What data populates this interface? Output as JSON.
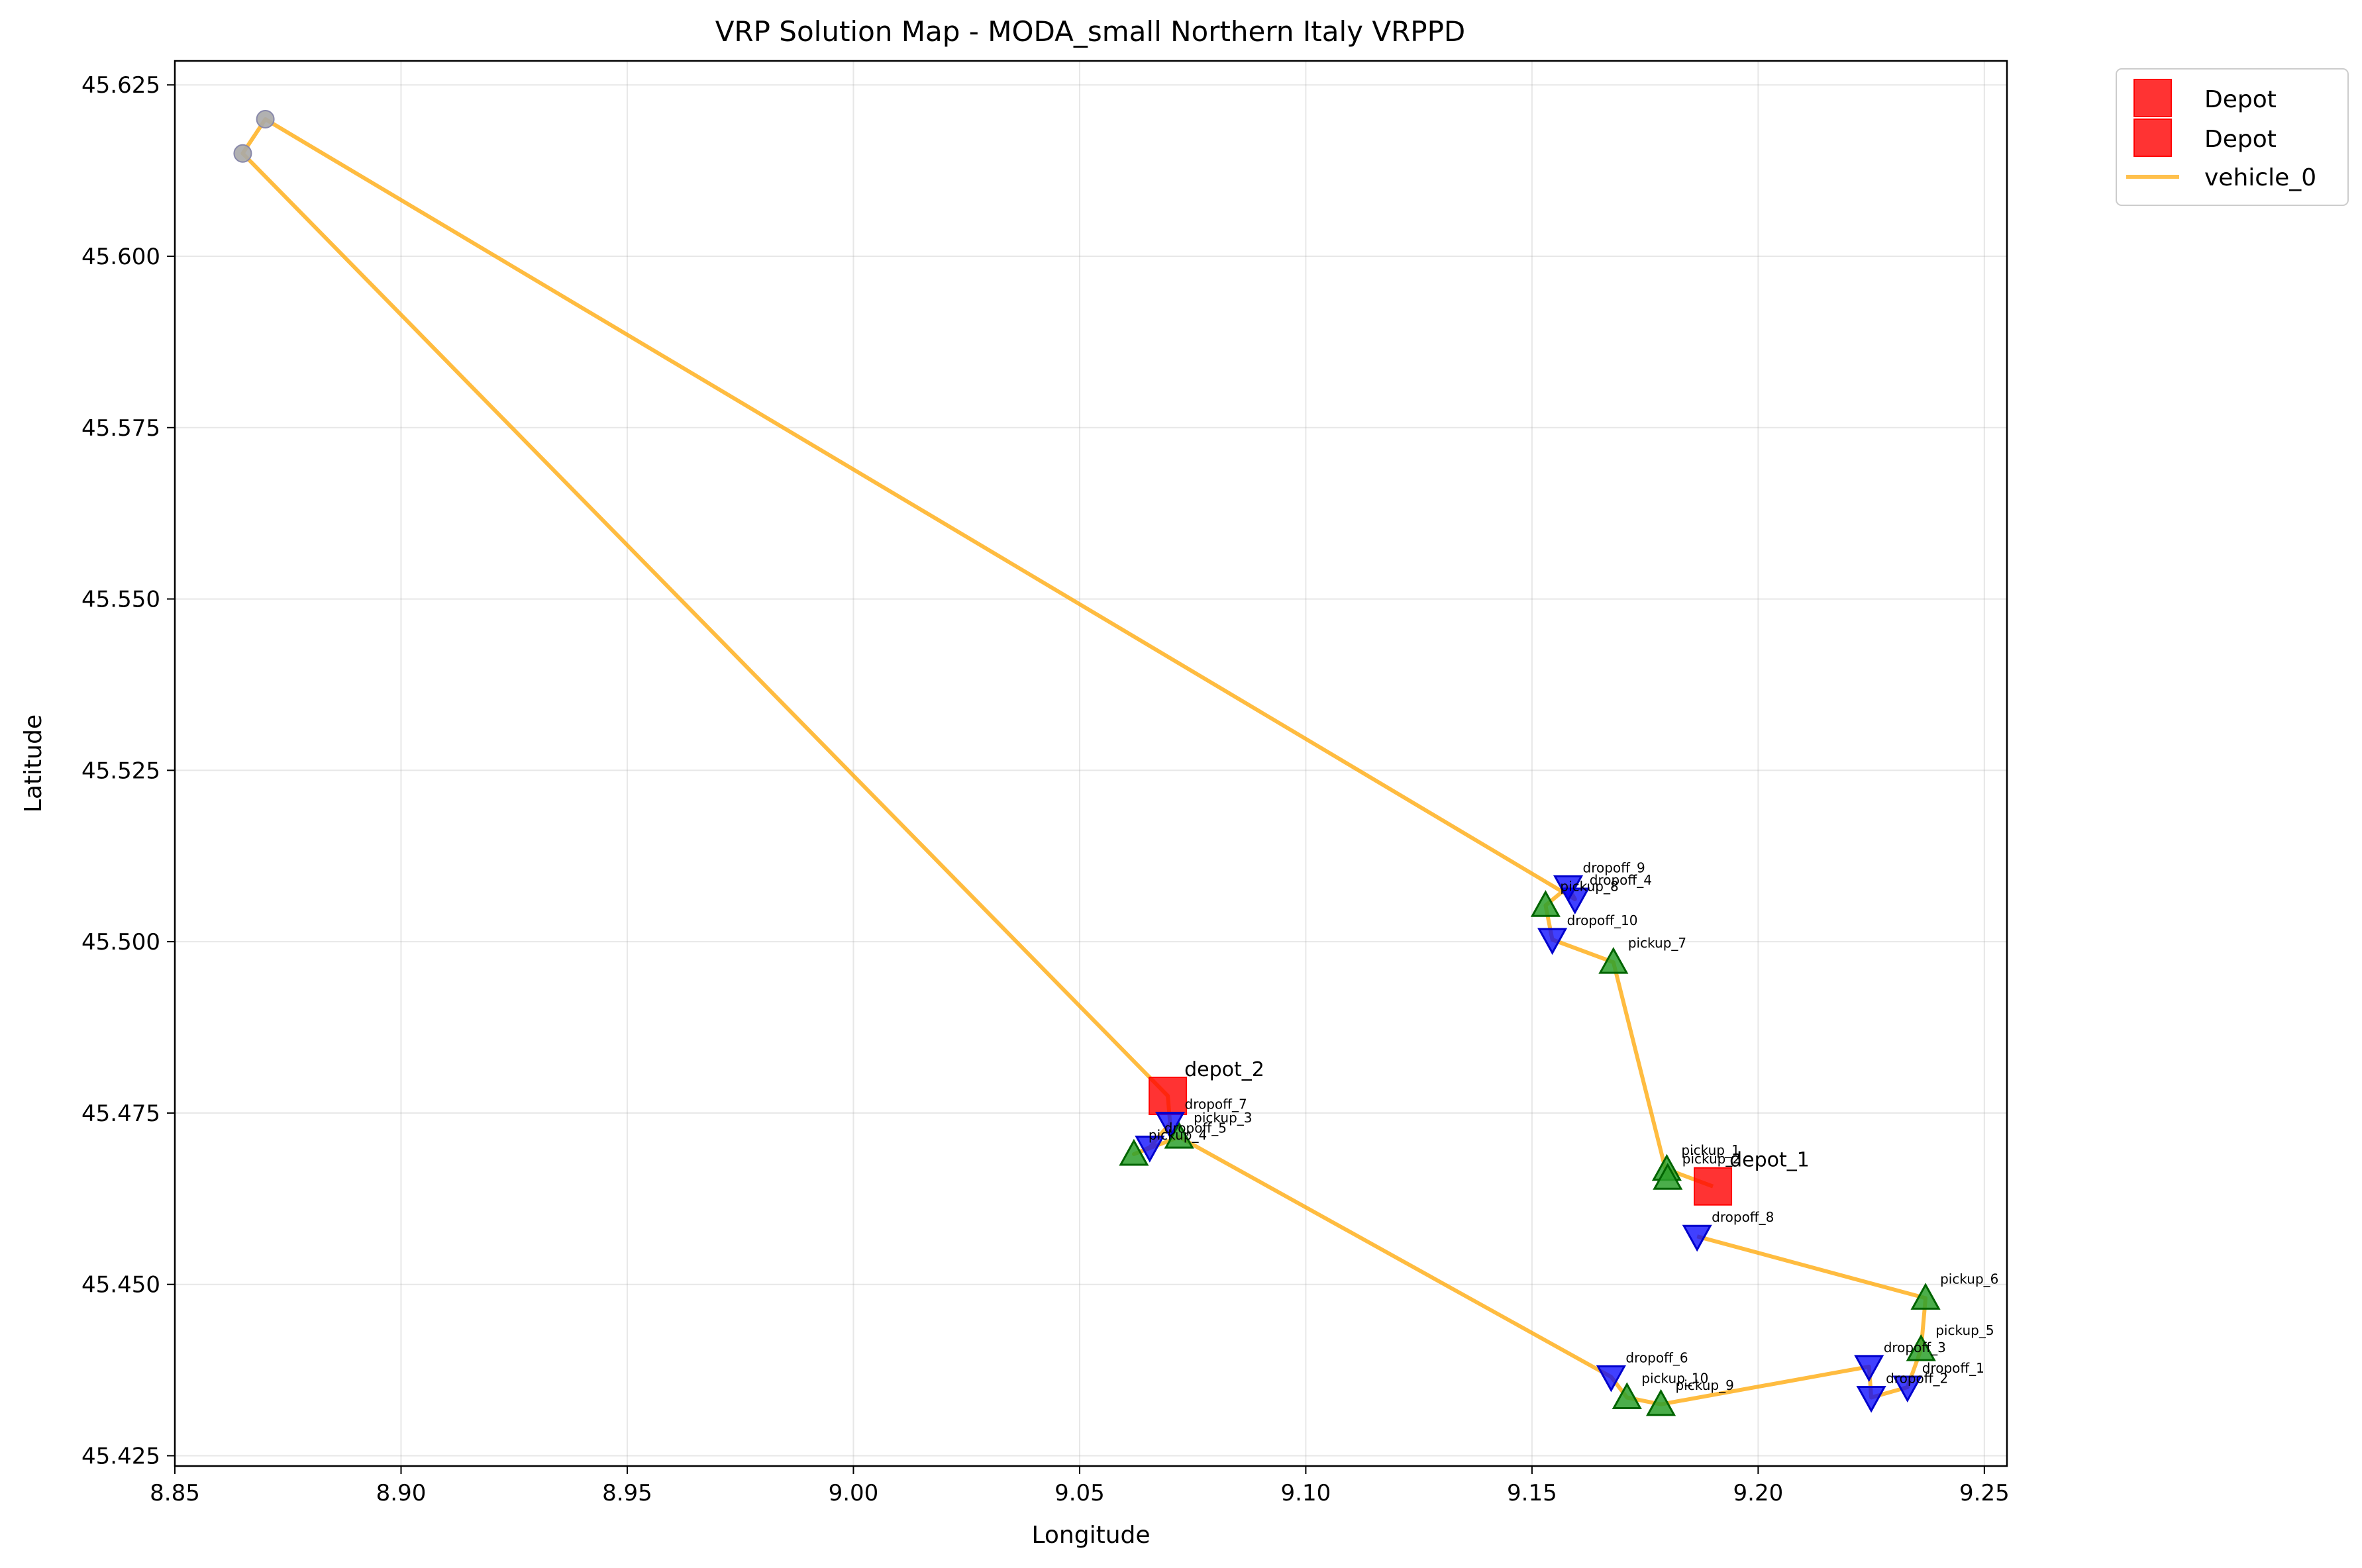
{
  "chart_data": {
    "type": "scatter",
    "title": "VRP Solution Map - MODA_small Northern Italy VRPPD",
    "xlabel": "Longitude",
    "ylabel": "Latitude",
    "xlim": [
      8.85,
      9.255
    ],
    "ylim": [
      45.4235,
      45.6285
    ],
    "grid": true,
    "legend_position": "outside top-right",
    "x_ticks": [
      8.85,
      8.9,
      8.95,
      9.0,
      9.05,
      9.1,
      9.15,
      9.2,
      9.25
    ],
    "x_tick_labels": [
      "8.85",
      "8.90",
      "8.95",
      "9.00",
      "9.05",
      "9.10",
      "9.15",
      "9.20",
      "9.25"
    ],
    "y_ticks": [
      45.425,
      45.45,
      45.475,
      45.5,
      45.525,
      45.55,
      45.575,
      45.6,
      45.625
    ],
    "y_tick_labels": [
      "45.425",
      "45.450",
      "45.475",
      "45.500",
      "45.525",
      "45.550",
      "45.575",
      "45.600",
      "45.625"
    ],
    "colors": {
      "depot": "#ff0000",
      "pickup_fill": "#2ca02c",
      "pickup_edge": "#006400",
      "dropoff_fill": "#0000ff",
      "route": "#ffa500",
      "waypoint": "#a9a9a9"
    },
    "legend": [
      {
        "label": "Depot",
        "marker": "square"
      },
      {
        "label": "Depot",
        "marker": "square"
      },
      {
        "label": "vehicle_0",
        "marker": "line"
      }
    ],
    "depots": [
      {
        "label": "depot_1",
        "x": 9.19,
        "y": 45.4643
      },
      {
        "label": "depot_2",
        "x": 9.0695,
        "y": 45.4775
      }
    ],
    "pickups": [
      {
        "label": "pickup_1",
        "x": 9.1798,
        "y": 45.4668
      },
      {
        "label": "pickup_2",
        "x": 9.18,
        "y": 45.4655
      },
      {
        "label": "pickup_3",
        "x": 9.072,
        "y": 45.4715
      },
      {
        "label": "pickup_4",
        "x": 9.062,
        "y": 45.469
      },
      {
        "label": "pickup_5",
        "x": 9.236,
        "y": 45.4405
      },
      {
        "label": "pickup_6",
        "x": 9.237,
        "y": 45.448
      },
      {
        "label": "pickup_7",
        "x": 9.168,
        "y": 45.497
      },
      {
        "label": "pickup_8",
        "x": 9.153,
        "y": 45.5053
      },
      {
        "label": "pickup_9",
        "x": 9.1785,
        "y": 45.4325
      },
      {
        "label": "pickup_10",
        "x": 9.171,
        "y": 45.4335
      }
    ],
    "dropoffs": [
      {
        "label": "dropoff_1",
        "x": 9.233,
        "y": 45.435
      },
      {
        "label": "dropoff_2",
        "x": 9.225,
        "y": 45.4335
      },
      {
        "label": "dropoff_3",
        "x": 9.2245,
        "y": 45.438
      },
      {
        "label": "dropoff_4",
        "x": 9.1595,
        "y": 45.5062
      },
      {
        "label": "dropoff_5",
        "x": 9.0655,
        "y": 45.47
      },
      {
        "label": "dropoff_6",
        "x": 9.1675,
        "y": 45.4365
      },
      {
        "label": "dropoff_7",
        "x": 9.07,
        "y": 45.4735
      },
      {
        "label": "dropoff_8",
        "x": 9.1865,
        "y": 45.457
      },
      {
        "label": "dropoff_9",
        "x": 9.158,
        "y": 45.508
      },
      {
        "label": "dropoff_10",
        "x": 9.1545,
        "y": 45.5003
      }
    ],
    "waypoints": [
      {
        "x": 8.87,
        "y": 45.62
      },
      {
        "x": 8.865,
        "y": 45.615
      }
    ],
    "series": [
      {
        "name": "vehicle_0",
        "x": [
          9.19,
          9.1798,
          9.18,
          9.168,
          9.1545,
          9.153,
          9.158,
          9.1595,
          8.87,
          8.865,
          9.0695,
          9.07,
          9.0655,
          9.062,
          9.072,
          9.1675,
          9.171,
          9.1785,
          9.2245,
          9.225,
          9.233,
          9.236,
          9.237,
          9.1865
        ],
        "y": [
          45.4643,
          45.4668,
          45.4655,
          45.497,
          45.5003,
          45.5053,
          45.508,
          45.5062,
          45.62,
          45.615,
          45.4775,
          45.4735,
          45.47,
          45.469,
          45.4715,
          45.4365,
          45.4335,
          45.4325,
          45.438,
          45.4335,
          45.435,
          45.4405,
          45.448,
          45.457
        ]
      }
    ]
  }
}
